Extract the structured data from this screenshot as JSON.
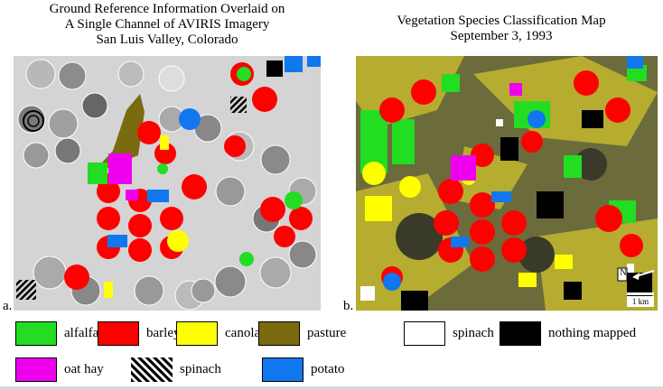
{
  "left_panel": {
    "title_lines": [
      "Ground Reference Information Overlaid on",
      "A Single Channel of AVIRIS Imagery",
      "San Luis Valley, Colorado"
    ],
    "letter": "a.",
    "image_description_icon": "grayscale-aviris-image"
  },
  "right_panel": {
    "title_lines": [
      "Vegetation Species Classification Map",
      "September 3, 1993"
    ],
    "letter": "b.",
    "north_label": "N",
    "scale_label": "1 km"
  },
  "legend_left": [
    {
      "label": "alfalfa",
      "color": "#22dd22"
    },
    {
      "label": "barley",
      "color": "#ff0000"
    },
    {
      "label": "canola",
      "color": "#ffff00"
    },
    {
      "label": "pasture",
      "color": "#7a6a10"
    },
    {
      "label": "oat hay",
      "color": "#ee00ee"
    },
    {
      "label": "spinach",
      "color": "hatch"
    },
    {
      "label": "potato",
      "color": "#1177ee"
    }
  ],
  "legend_right": [
    {
      "label": "spinach",
      "color": "#ffffff"
    },
    {
      "label": "nothing mapped",
      "color": "#000000"
    }
  ]
}
